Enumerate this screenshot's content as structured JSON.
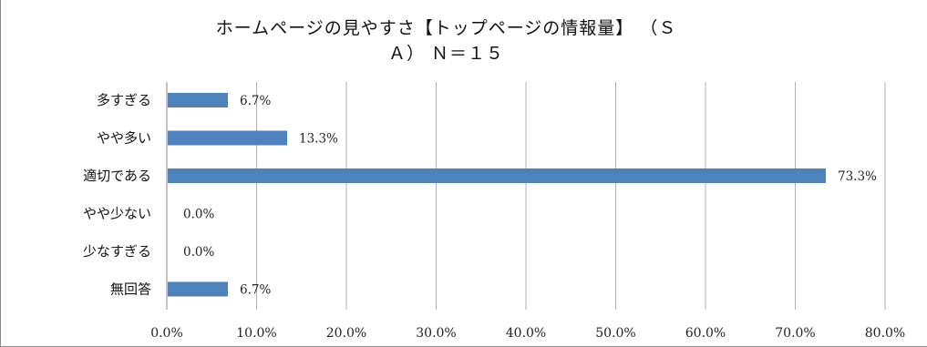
{
  "chart_data": {
    "type": "bar",
    "orientation": "horizontal",
    "title": "ホームページの見やすさ【トップページの情報量】（SA）N＝１５",
    "title_lines": [
      "ホームページの見やすさ【トップページの情報量】 （Ｓ",
      "Ａ） Ｎ＝１５"
    ],
    "categories": [
      "多すぎる",
      "やや多い",
      "適切である",
      "やや少ない",
      "少なすぎる",
      "無回答"
    ],
    "values": [
      6.7,
      13.3,
      73.3,
      0.0,
      0.0,
      6.7
    ],
    "data_labels": [
      "6.7%",
      "13.3%",
      "73.3%",
      "0.0%",
      "0.0%",
      "6.7%"
    ],
    "xlim": [
      0,
      80
    ],
    "x_ticks": [
      "0.0%",
      "10.0%",
      "20.0%",
      "30.0%",
      "40.0%",
      "50.0%",
      "60.0%",
      "70.0%",
      "80.0%"
    ],
    "grid": true,
    "legend": "none",
    "bar_color": "#4f81bd",
    "grid_color": "#b0b0b0"
  }
}
